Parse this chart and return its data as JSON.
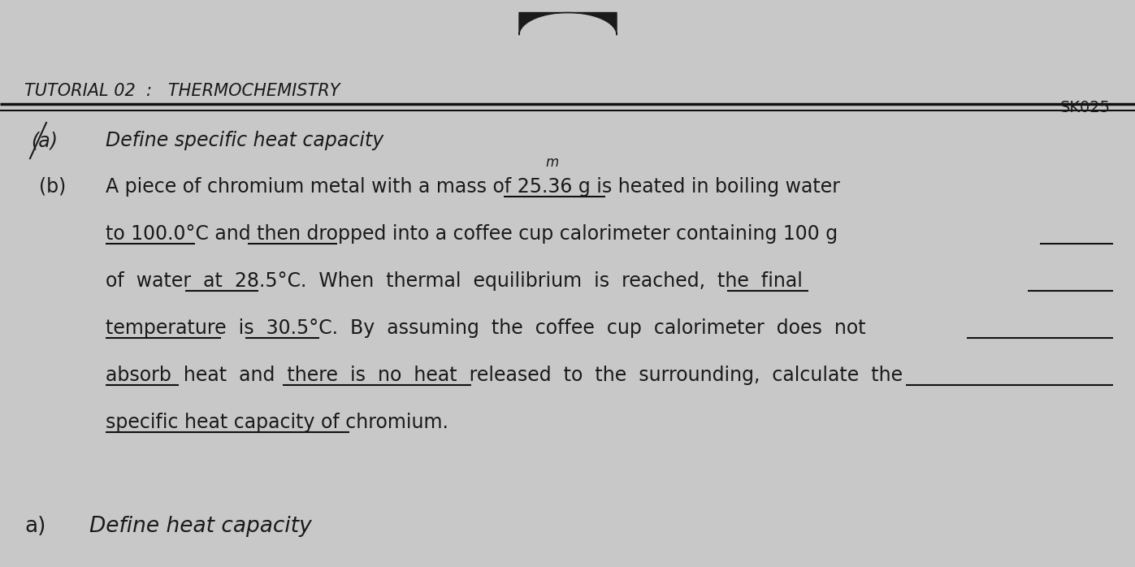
{
  "bg_color": "#c8c8c8",
  "paper_color": "#e0e0e0",
  "title_text": "TUTORIAL 02  :   THERMOCHEMISTRY",
  "code_text": "SK025",
  "item_a_label": "(a)",
  "item_a_text": "Define specific heat capacity",
  "item_b_label": "(b)",
  "item_b_line1": "A piece of chromium metal with a mass of 25.36 g is heated in boiling water",
  "item_b_line2": "to 100.0°C and then dropped into a coffee cup calorimeter containing 100 g",
  "item_b_line3": "of  water  at  28.5°C.  When  thermal  equilibrium  is  reached,  the  final",
  "item_b_line4": "temperature  is  30.5°C.  By  assuming  the  coffee  cup  calorimeter  does  not",
  "item_b_line5": "absorb  heat  and  there  is  no  heat  released  to  the  surrounding,  calculate  the",
  "item_b_line6": "specific heat capacity of chromium.",
  "footer_a_label": "a)",
  "footer_a_text": "Define heat capacity",
  "title_font_size": 15,
  "body_font_size": 17,
  "footer_font_size": 19,
  "text_color": "#1a1a1a",
  "line_color": "#111111",
  "logo_color": "#111111"
}
